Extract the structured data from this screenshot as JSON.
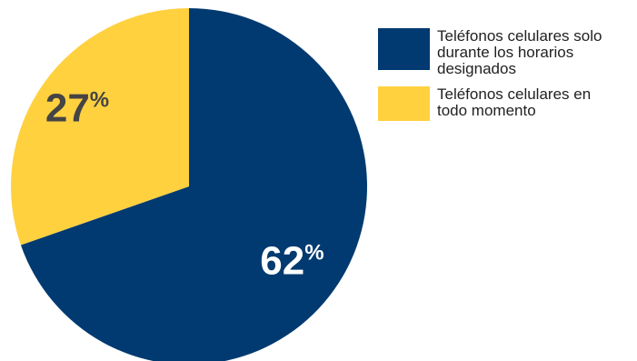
{
  "chart_data": {
    "type": "pie",
    "series": [
      {
        "name": "Teléfonos celulares solo durante los horarios designados",
        "value": 62,
        "label": "62",
        "color": "#003A70"
      },
      {
        "name": "Teléfonos celulares en todo momento",
        "value": 27,
        "label": "27",
        "color": "#FFD13F"
      }
    ],
    "value_suffix": "%",
    "legend_position": "right",
    "label_color_dark_slice": "#FFFFFF",
    "label_color_light_slice": "#444444"
  },
  "legend": {
    "items": [
      {
        "lines": [
          "Teléfonos celulares solo",
          "durante los horarios",
          "designados"
        ]
      },
      {
        "lines": [
          "Teléfonos celulares en",
          "todo momento"
        ]
      }
    ]
  }
}
